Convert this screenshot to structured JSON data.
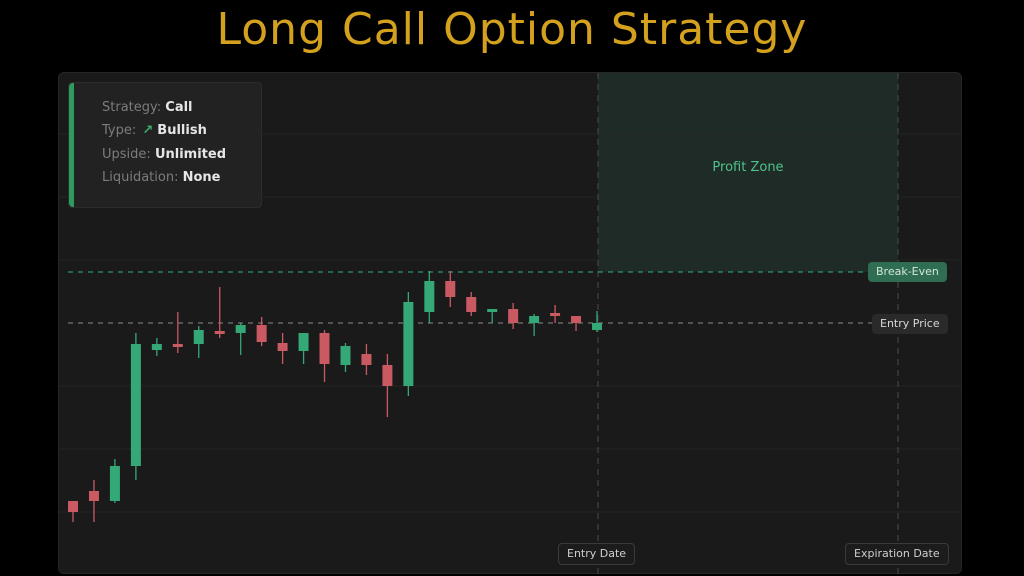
{
  "title": "Long Call Option Strategy",
  "info": {
    "strategy_label": "Strategy:",
    "strategy_value": "Call",
    "type_label": "Type:",
    "type_icon": "arrow-up-right-icon",
    "type_value": "Bullish",
    "upside_label": "Upside:",
    "upside_value": "Unlimited",
    "liquidation_label": "Liquidation:",
    "liquidation_value": "None"
  },
  "colors": {
    "up": "#35a878",
    "down": "#c95a62",
    "accent": "#d4a11e",
    "break_even_line": "#2fb58a",
    "entry_line": "#8a8a8a"
  },
  "chart_data": {
    "type": "candlestick",
    "title": "Long Call Option Strategy",
    "xlabel": "",
    "ylabel": "",
    "grid": true,
    "ylim": [
      60,
      140
    ],
    "candles": [
      {
        "o": 64.4,
        "h": 64.4,
        "l": 60.2,
        "c": 62.2
      },
      {
        "o": 66.4,
        "h": 68.6,
        "l": 60.2,
        "c": 64.4
      },
      {
        "o": 64.4,
        "h": 72.8,
        "l": 64.0,
        "c": 71.4
      },
      {
        "o": 71.4,
        "h": 98.0,
        "l": 68.6,
        "c": 95.8
      },
      {
        "o": 94.6,
        "h": 97.0,
        "l": 93.4,
        "c": 95.8
      },
      {
        "o": 95.8,
        "h": 102.2,
        "l": 94.0,
        "c": 95.2
      },
      {
        "o": 95.8,
        "h": 99.4,
        "l": 93.0,
        "c": 98.6
      },
      {
        "o": 98.4,
        "h": 107.2,
        "l": 97.0,
        "c": 97.8
      },
      {
        "o": 98.0,
        "h": 100.0,
        "l": 93.6,
        "c": 99.6
      },
      {
        "o": 99.6,
        "h": 101.2,
        "l": 95.4,
        "c": 96.2
      },
      {
        "o": 96.0,
        "h": 98.0,
        "l": 91.8,
        "c": 94.4
      },
      {
        "o": 94.4,
        "h": 98.0,
        "l": 91.8,
        "c": 98.0
      },
      {
        "o": 98.0,
        "h": 98.6,
        "l": 88.2,
        "c": 91.8
      },
      {
        "o": 91.6,
        "h": 96.0,
        "l": 90.2,
        "c": 95.4
      },
      {
        "o": 93.8,
        "h": 95.8,
        "l": 89.6,
        "c": 91.6
      },
      {
        "o": 91.6,
        "h": 93.8,
        "l": 81.2,
        "c": 87.4
      },
      {
        "o": 87.4,
        "h": 106.2,
        "l": 85.4,
        "c": 104.2
      },
      {
        "o": 102.2,
        "h": 110.4,
        "l": 100.0,
        "c": 108.4
      },
      {
        "o": 108.4,
        "h": 110.4,
        "l": 103.2,
        "c": 105.2
      },
      {
        "o": 105.2,
        "h": 106.2,
        "l": 101.4,
        "c": 102.2
      },
      {
        "o": 102.2,
        "h": 102.8,
        "l": 100.0,
        "c": 102.8
      },
      {
        "o": 102.8,
        "h": 104.0,
        "l": 98.8,
        "c": 100.0
      },
      {
        "o": 100.0,
        "h": 101.8,
        "l": 97.4,
        "c": 101.4
      },
      {
        "o": 102.0,
        "h": 103.6,
        "l": 100.0,
        "c": 101.4
      },
      {
        "o": 101.4,
        "h": 101.4,
        "l": 98.4,
        "c": 100.0
      },
      {
        "o": 98.6,
        "h": 102.4,
        "l": 98.2,
        "c": 100.0
      }
    ],
    "break_even": 110.2,
    "entry_price": 100,
    "labels": {
      "break_even": "Break-Even",
      "entry_price": "Entry Price",
      "entry_date": "Entry Date",
      "expiration_date": "Expiration Date",
      "profit_zone": "Profit Zone"
    }
  }
}
